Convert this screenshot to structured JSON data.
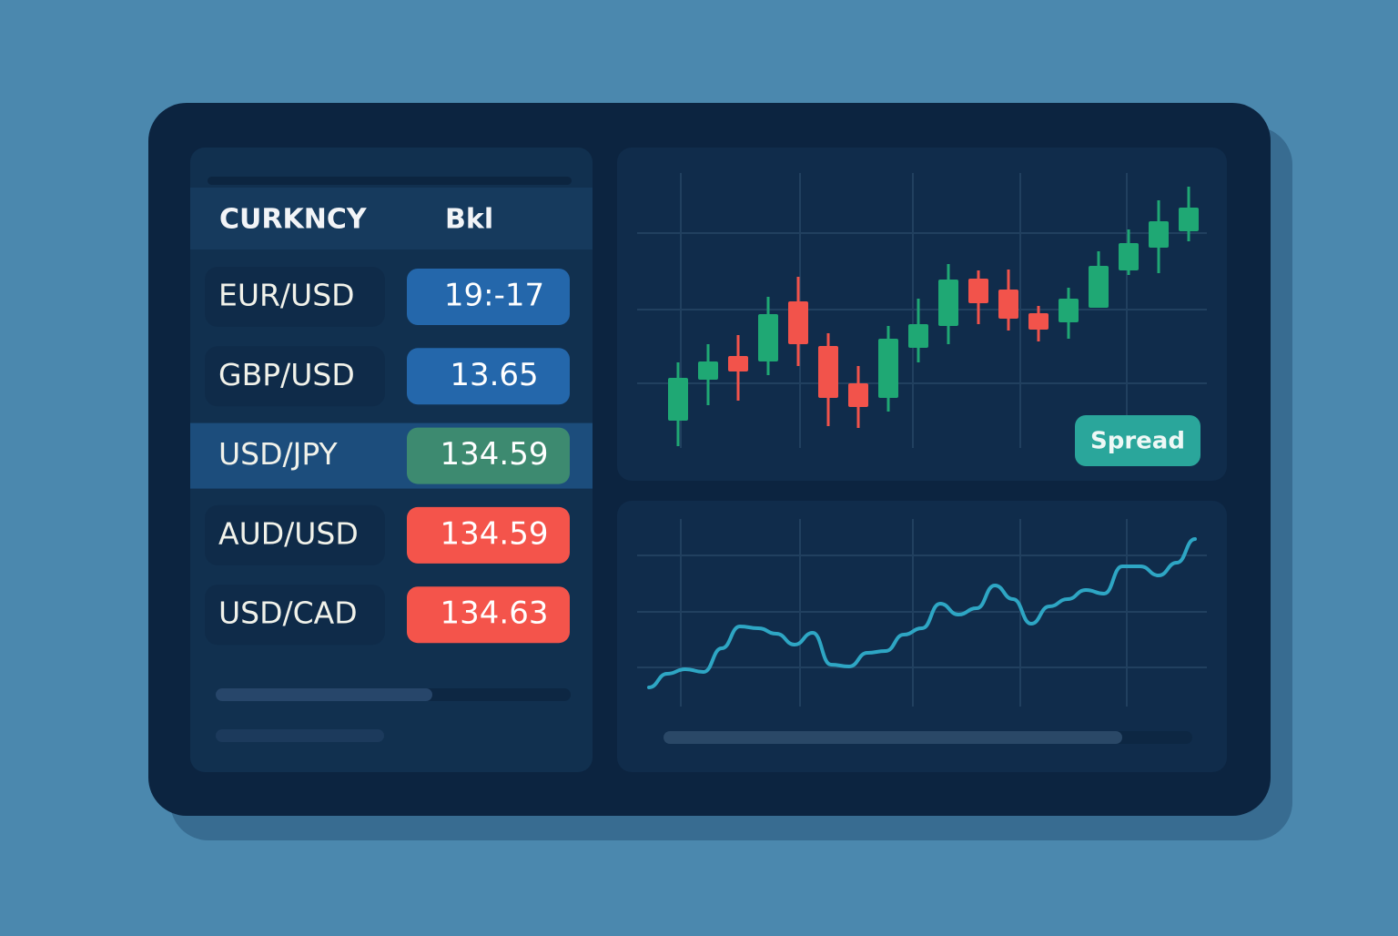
{
  "table": {
    "headers": [
      "CURKNCY",
      "Bkl"
    ],
    "rows": [
      {
        "pair": "EUR/USD",
        "price": "19:-17",
        "color": "#2467ab"
      },
      {
        "pair": "GBP/USD",
        "price": "13.65",
        "color": "#2467ab"
      },
      {
        "pair": "USD/JPY",
        "price": "134.59",
        "color": "#3d8a70",
        "highlighted": true
      },
      {
        "pair": "AUD/USD",
        "price": "134.59",
        "color": "#f4544b"
      },
      {
        "pair": "USD/CAD",
        "price": "134.63",
        "color": "#f4544b"
      }
    ]
  },
  "button": "Spread",
  "chart_data": [
    {
      "type": "candlestick",
      "up_color": "#1fa874",
      "down_color": "#f2534b",
      "ylim": [
        0,
        310
      ],
      "candles": [
        {
          "open": 38,
          "close": 85,
          "high": 102,
          "low": 10
        },
        {
          "open": 83,
          "close": 103,
          "high": 122,
          "low": 55
        },
        {
          "open": 109,
          "close": 92,
          "high": 132,
          "low": 60
        },
        {
          "open": 103,
          "close": 155,
          "high": 174,
          "low": 88
        },
        {
          "open": 169,
          "close": 122,
          "high": 196,
          "low": 98
        },
        {
          "open": 120,
          "close": 63,
          "high": 134,
          "low": 32
        },
        {
          "open": 79,
          "close": 53,
          "high": 98,
          "low": 30
        },
        {
          "open": 63,
          "close": 128,
          "high": 142,
          "low": 48
        },
        {
          "open": 118,
          "close": 144,
          "high": 172,
          "low": 102
        },
        {
          "open": 142,
          "close": 193,
          "high": 210,
          "low": 122
        },
        {
          "open": 194,
          "close": 167,
          "high": 203,
          "low": 144
        },
        {
          "open": 182,
          "close": 150,
          "high": 204,
          "low": 137
        },
        {
          "open": 156,
          "close": 138,
          "high": 164,
          "low": 125
        },
        {
          "open": 146,
          "close": 172,
          "high": 184,
          "low": 128
        },
        {
          "open": 162,
          "close": 208,
          "high": 224,
          "low": 162
        },
        {
          "open": 203,
          "close": 233,
          "high": 248,
          "low": 198
        },
        {
          "open": 228,
          "close": 257,
          "high": 280,
          "low": 200
        },
        {
          "open": 246,
          "close": 272,
          "high": 295,
          "low": 235
        }
      ]
    },
    {
      "type": "line",
      "color": "#2ea6c4",
      "ylim": [
        0,
        190
      ],
      "values": [
        15,
        30,
        35,
        32,
        58,
        82,
        80,
        74,
        62,
        75,
        40,
        38,
        53,
        55,
        73,
        80,
        107,
        95,
        102,
        127,
        112,
        85,
        104,
        112,
        122,
        118,
        148,
        148,
        138,
        152,
        178
      ]
    }
  ]
}
